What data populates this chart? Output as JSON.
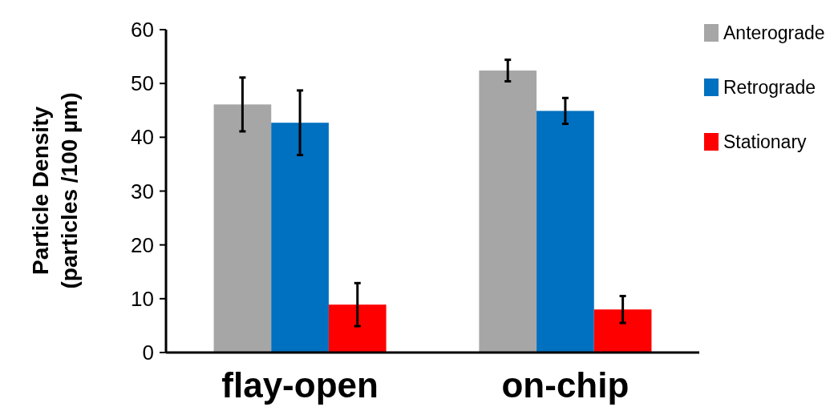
{
  "chart_data": {
    "type": "bar",
    "ylabel": "Particle Density\n(particles /100 µm)",
    "categories": [
      "flay-open",
      "on-chip"
    ],
    "series": [
      {
        "name": "Anterograde",
        "color": "#a6a6a6",
        "values": [
          46.1,
          52.4
        ],
        "errors": [
          5,
          2
        ]
      },
      {
        "name": "Retrograde",
        "color": "#0070c0",
        "values": [
          42.7,
          44.9
        ],
        "errors": [
          6,
          2.4
        ]
      },
      {
        "name": "Stationary",
        "color": "#ff0000",
        "values": [
          8.9,
          8.0
        ],
        "errors": [
          4,
          2.5
        ]
      }
    ],
    "ylim": [
      0,
      60
    ],
    "yticks": [
      0,
      10,
      20,
      30,
      40,
      50,
      60
    ],
    "grid": false,
    "legend": "top right"
  }
}
